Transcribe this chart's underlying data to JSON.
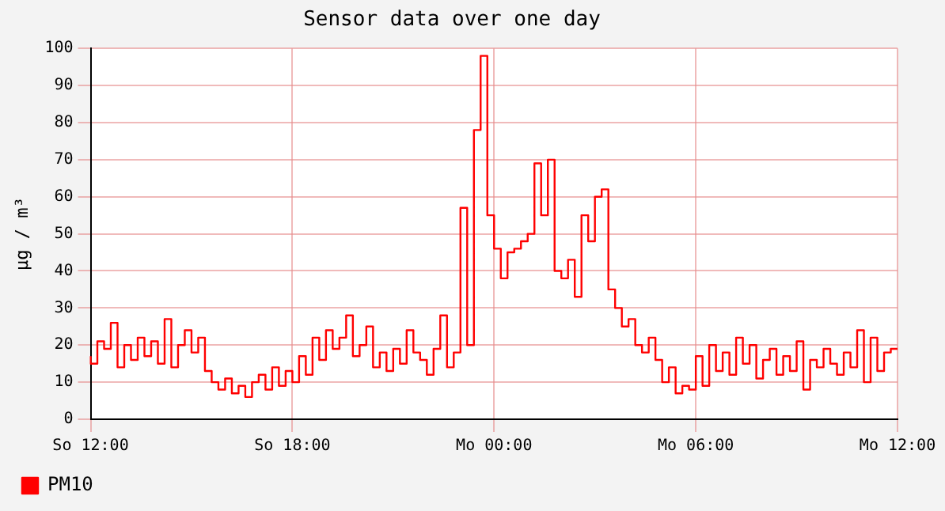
{
  "chart_data": {
    "type": "step",
    "title": "Sensor data over one day",
    "ylabel": "µg / m³",
    "categories": [
      "So 12:00",
      null,
      null,
      null,
      null,
      null,
      null,
      null,
      null,
      null,
      null,
      null,
      null,
      null,
      null,
      null,
      null,
      null,
      null,
      null,
      null,
      null,
      null,
      null,
      null,
      null,
      null,
      null,
      null,
      null,
      "So 18:00",
      null,
      null,
      null,
      null,
      null,
      null,
      null,
      null,
      null,
      null,
      null,
      null,
      null,
      null,
      null,
      null,
      null,
      null,
      null,
      null,
      null,
      null,
      null,
      null,
      null,
      null,
      null,
      null,
      null,
      "Mo 00:00",
      null,
      null,
      null,
      null,
      null,
      null,
      null,
      null,
      null,
      null,
      null,
      null,
      null,
      null,
      null,
      null,
      null,
      null,
      null,
      null,
      null,
      null,
      null,
      null,
      null,
      null,
      null,
      null,
      null,
      "Mo 06:00",
      null,
      null,
      null,
      null,
      null,
      null,
      null,
      null,
      null,
      null,
      null,
      null,
      null,
      null,
      null,
      null,
      null,
      null,
      null,
      null,
      null,
      null,
      null,
      null,
      null,
      null,
      null,
      null,
      null,
      "Mo 12:00"
    ],
    "ylim": [
      0,
      100
    ],
    "yticks": [
      0,
      10,
      20,
      30,
      40,
      50,
      60,
      70,
      80,
      90,
      100
    ],
    "grid": true,
    "legend": "bottom left",
    "marker": "none",
    "line_style": "solid",
    "series": [
      {
        "name": "PM10",
        "color": "#ff0000",
        "values": [
          17,
          15,
          21,
          19,
          26,
          14,
          20,
          16,
          22,
          17,
          21,
          15,
          27,
          14,
          20,
          24,
          18,
          22,
          13,
          10,
          8,
          11,
          7,
          9,
          6,
          10,
          12,
          8,
          14,
          9,
          13,
          10,
          17,
          12,
          22,
          16,
          24,
          19,
          22,
          28,
          17,
          20,
          25,
          14,
          18,
          13,
          19,
          15,
          24,
          18,
          16,
          12,
          19,
          28,
          14,
          18,
          57,
          20,
          78,
          98,
          55,
          46,
          38,
          45,
          46,
          48,
          50,
          69,
          55,
          70,
          40,
          38,
          43,
          33,
          55,
          48,
          60,
          62,
          35,
          30,
          25,
          27,
          20,
          18,
          22,
          16,
          10,
          14,
          7,
          9,
          8,
          17,
          9,
          20,
          13,
          18,
          12,
          22,
          15,
          20,
          11,
          16,
          19,
          12,
          17,
          13,
          21,
          8,
          16,
          14,
          19,
          15,
          12,
          18,
          14,
          24,
          10,
          22,
          13,
          18,
          19
        ]
      }
    ]
  }
}
